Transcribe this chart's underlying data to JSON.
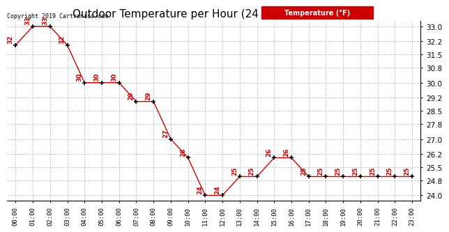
{
  "title": "Outdoor Temperature per Hour (24 Hours) 20190116",
  "copyright_text": "Copyright 2019 Cartronics.com",
  "legend_label": "Temperature (°F)",
  "hours": [
    "00:00",
    "01:00",
    "02:00",
    "03:00",
    "04:00",
    "05:00",
    "06:00",
    "07:00",
    "08:00",
    "09:00",
    "10:00",
    "11:00",
    "12:00",
    "13:00",
    "14:00",
    "15:00",
    "16:00",
    "17:00",
    "18:00",
    "19:00",
    "20:00",
    "21:00",
    "22:00",
    "23:00"
  ],
  "temperatures": [
    32,
    33,
    33,
    32,
    30,
    30,
    30,
    29,
    29,
    27,
    26,
    24,
    24,
    25,
    25,
    26,
    26,
    25,
    25,
    25,
    25,
    25,
    25,
    25
  ],
  "yticks": [
    24.0,
    24.8,
    25.5,
    26.2,
    27.0,
    27.8,
    28.5,
    29.2,
    30.0,
    30.8,
    31.5,
    32.2,
    33.0
  ],
  "ylim": [
    23.7,
    33.3
  ],
  "line_color": "#cc0000",
  "marker_color": "#000000",
  "annotation_color": "#cc0000",
  "legend_bg": "#cc0000",
  "legend_fg": "#ffffff",
  "title_fontsize": 11,
  "annotation_fontsize": 6.5,
  "copyright_fontsize": 6,
  "background_color": "#ffffff",
  "grid_color": "#bbbbbb"
}
